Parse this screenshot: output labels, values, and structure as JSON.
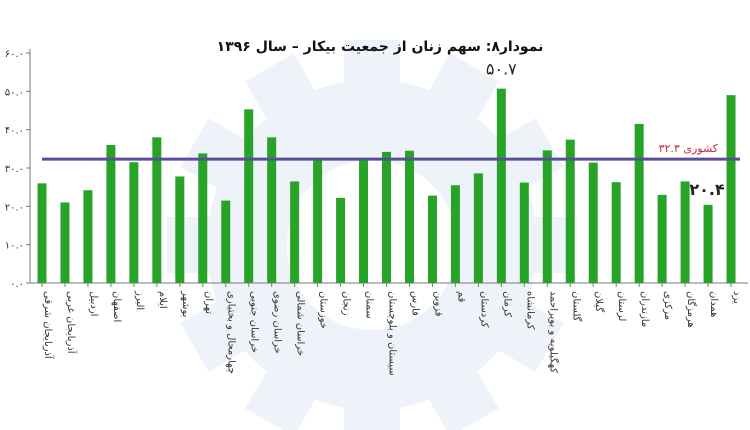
{
  "chart_data": {
    "type": "bar",
    "title": "نمودار۸: سهم زنان از جمعیت بیکار – سال ۱۳۹۶",
    "xlabel": "",
    "ylabel": "",
    "ylim": [
      0,
      60
    ],
    "y_ticks": [
      {
        "value": 0,
        "label": "۰.۰"
      },
      {
        "value": 10,
        "label": "۱۰.۰"
      },
      {
        "value": 20,
        "label": "۲۰.۰"
      },
      {
        "value": 30,
        "label": "۳۰.۰"
      },
      {
        "value": 40,
        "label": "۴۰.۰"
      },
      {
        "value": 50,
        "label": "۵۰.۰"
      },
      {
        "value": 60,
        "label": "۶۰.۰"
      }
    ],
    "grid": false,
    "legend": "none",
    "categories": [
      "آذربایجان شرقی",
      "آذربایجان غربی",
      "اردبیل",
      "اصفهان",
      "البرز",
      "ایلام",
      "بوشهر",
      "تهران",
      "چهارمحال و بختیاری",
      "خراسان جنوبی",
      "خراسان رضوی",
      "خراسان شمالی",
      "خوزستان",
      "زنجان",
      "سمنان",
      "سیستان و بلوچستان",
      "فارس",
      "قزوین",
      "قم",
      "کردستان",
      "کرمان",
      "کرمانشاه",
      "کهگیلویه و بویراحمد",
      "گلستان",
      "گیلان",
      "لرستان",
      "مازندران",
      "مرکزی",
      "هرمزگان",
      "همدان",
      "یزد"
    ],
    "values": [
      26.0,
      21.0,
      24.2,
      36.0,
      31.5,
      38.0,
      27.8,
      33.8,
      21.5,
      45.3,
      38.0,
      26.5,
      32.0,
      22.2,
      32.0,
      34.2,
      34.5,
      22.8,
      25.5,
      28.6,
      50.7,
      26.2,
      34.6,
      37.4,
      31.4,
      26.3,
      41.5,
      23.0,
      26.5,
      20.4,
      49.0
    ],
    "reference_line": {
      "value": 32.3,
      "label": "کشوری ۳۲.۳"
    },
    "annotations": [
      {
        "category": "کرمان",
        "text": "۵۰.۷"
      },
      {
        "category": "همدان",
        "text": "۲۰.۴"
      }
    ],
    "colors": {
      "bar": "#27a327",
      "reference_line": "#5b4e96",
      "reference_label": "#c8283a",
      "axis": "#7a7a7a"
    }
  }
}
